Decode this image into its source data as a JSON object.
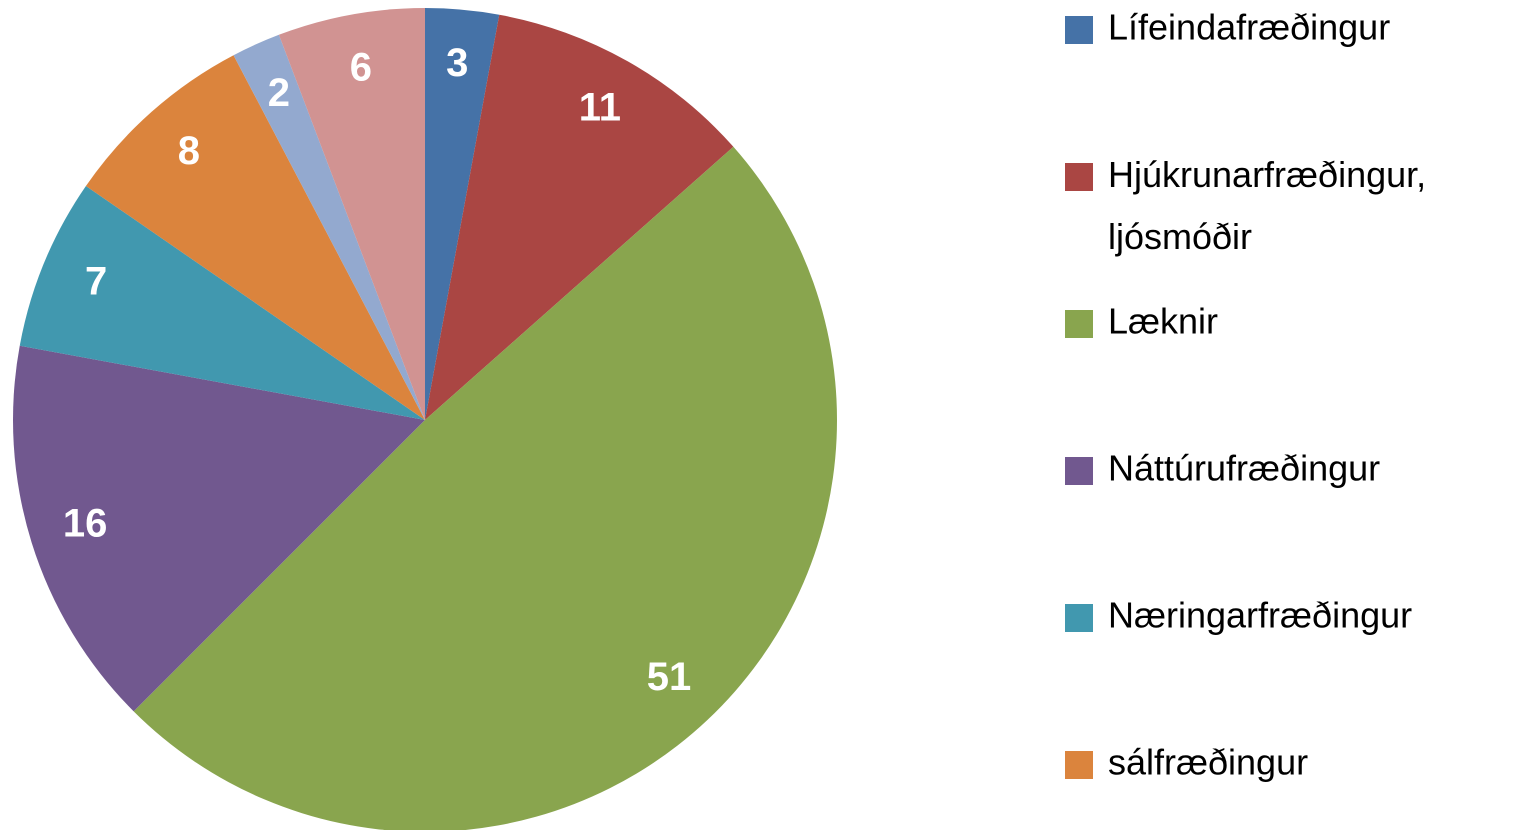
{
  "chart_data": {
    "type": "pie",
    "categories": [
      "Lífeindafræðingur",
      "Hjúkrunarfræðingur, ljósmóðir",
      "Læknir",
      "Náttúrufræðingur",
      "Næringarfræðingur",
      "sálfræðingur",
      null,
      null
    ],
    "values": [
      3,
      11,
      51,
      16,
      7,
      8,
      2,
      6
    ],
    "colors": [
      "#4572a7",
      "#aa4643",
      "#89a54e",
      "#71588f",
      "#4198af",
      "#db843d",
      "#93a9cf",
      "#d19392"
    ],
    "legend": "right"
  }
}
